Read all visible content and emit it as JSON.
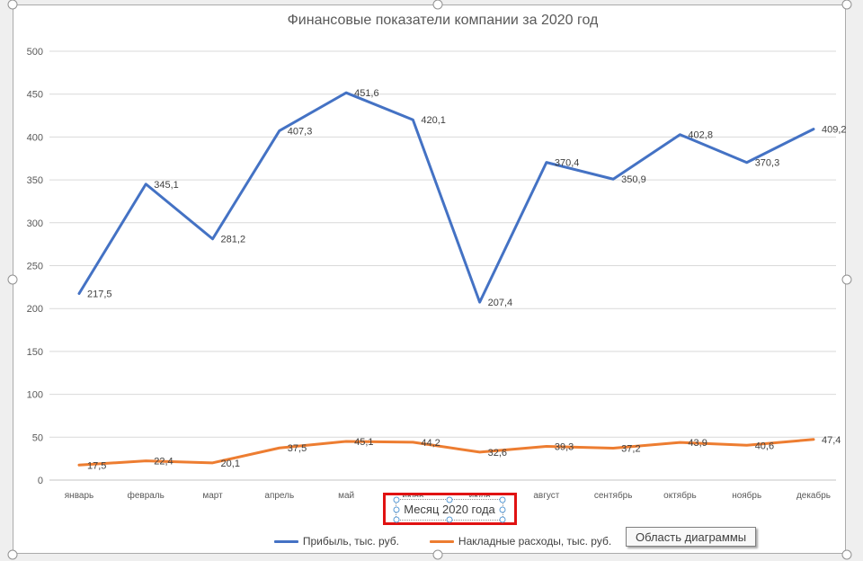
{
  "chart": {
    "title": "Финансовые показатели компании за 2020 год",
    "x_axis_title": "Месяц 2020 года",
    "tooltip": "Область диаграммы"
  },
  "colors": {
    "series_blue": "#4472C4",
    "series_orange": "#ED7D31",
    "highlight_red": "#e01212",
    "gridline": "#d9d9d9",
    "axis_text": "#595959",
    "data_label": "#404040"
  },
  "chart_data": {
    "type": "line",
    "title": "Финансовые показатели компании за 2020 год",
    "categories": [
      "январь",
      "февраль",
      "март",
      "апрель",
      "май",
      "июнь",
      "июль",
      "август",
      "сентябрь",
      "октябрь",
      "ноябрь",
      "декабрь"
    ],
    "series": [
      {
        "name": "Прибыль, тыс. руб.",
        "color": "#4472C4",
        "values": [
          217.5,
          345.1,
          281.2,
          407.3,
          451.6,
          420.1,
          207.4,
          370.4,
          350.9,
          402.8,
          370.3,
          409.2
        ]
      },
      {
        "name": "Накладные расходы, тыс. руб.",
        "color": "#ED7D31",
        "values": [
          17.5,
          22.4,
          20.1,
          37.5,
          45.1,
          44.2,
          32.6,
          39.3,
          37.2,
          43.9,
          40.6,
          47.4
        ]
      }
    ],
    "xlabel": "Месяц 2020 года",
    "ylabel": "",
    "ylim": [
      0,
      500
    ],
    "ytick_step": 50,
    "grid": true,
    "legend_position": "bottom",
    "data_labels": "right",
    "decimal_separator": ","
  }
}
